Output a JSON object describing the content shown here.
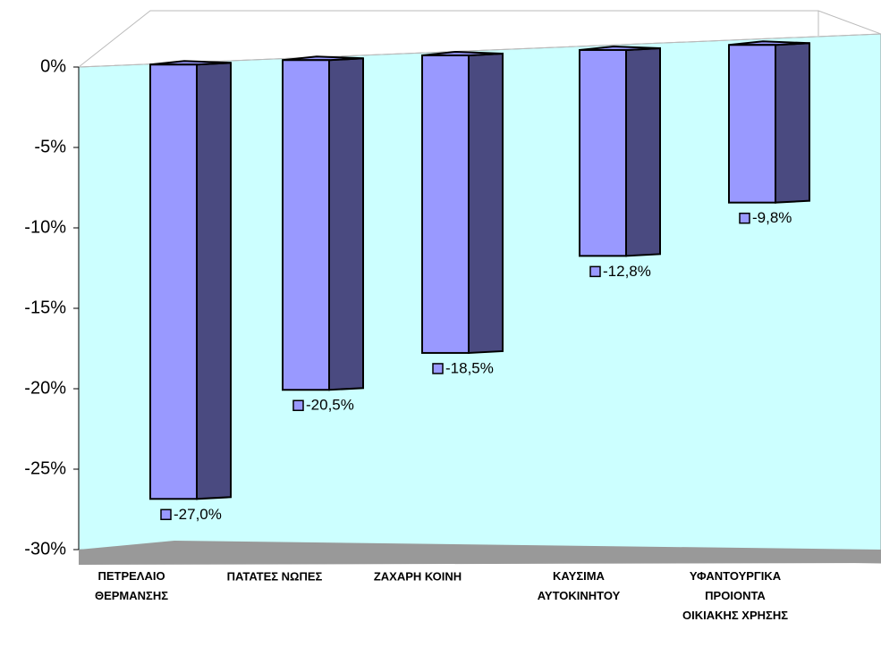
{
  "chart_data": {
    "type": "bar3d",
    "categories": [
      "ΠΕΤΡΕΛΑΙΟ\nΘΕΡΜΑΝΣΗΣ",
      "ΠΑΤΑΤΕΣ ΝΩΠΕΣ",
      "ΖΑΧΑΡΗ ΚΟΙΝΗ",
      "ΚΑΥΣΙΜΑ\nΑΥΤΟΚΙΝΗΤΟΥ",
      "ΥΦΑΝΤΟΥΡΓΙΚΑ\nΠΡΟΙΟΝΤΑ\nΟΙΚΙΑΚΗΣ ΧΡΗΣΗΣ"
    ],
    "values": [
      -27.0,
      -20.5,
      -18.5,
      -12.8,
      -9.8
    ],
    "value_labels": [
      "-27,0%",
      "-20,5%",
      "-18,5%",
      "-12,8%",
      "-9,8%"
    ],
    "color": "#9999ff",
    "ylim": [
      -30,
      0
    ],
    "yticks": [
      {
        "value": 0,
        "label": "0%"
      },
      {
        "value": -5,
        "label": "-5%"
      },
      {
        "value": -10,
        "label": "-10%"
      },
      {
        "value": -15,
        "label": "-15%"
      },
      {
        "value": -20,
        "label": "-20%"
      },
      {
        "value": -25,
        "label": "-25%"
      },
      {
        "value": -30,
        "label": "-30%"
      }
    ]
  }
}
